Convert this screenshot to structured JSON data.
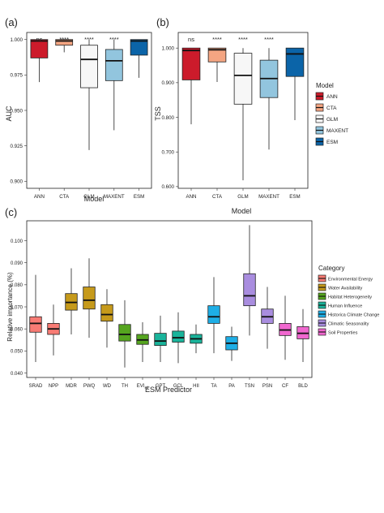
{
  "chart_data": [
    {
      "panel": "(a)",
      "type": "box",
      "ylabel": "AUC",
      "xlabel": "Model",
      "ylim": [
        0.895,
        1.005
      ],
      "yticks": [
        "0.900",
        "0.925",
        "0.950",
        "0.975",
        "1.000"
      ],
      "ytick_values": [
        0.9,
        0.925,
        0.95,
        0.975,
        1.0
      ],
      "categories": [
        "ANN",
        "CTA",
        "GLM",
        "MAXENT",
        "ESM"
      ],
      "sig": [
        "ns",
        "****",
        "****",
        "****",
        ""
      ],
      "colors": [
        "#cc1b2b",
        "#f4a582",
        "#f7f7f7",
        "#92c5de",
        "#0b64a8"
      ],
      "boxes": [
        {
          "min": 0.97,
          "q1": 0.987,
          "median": 0.999,
          "q3": 1.0,
          "max": 1.0
        },
        {
          "min": 0.991,
          "q1": 0.996,
          "median": 0.999,
          "q3": 1.0,
          "max": 1.0
        },
        {
          "min": 0.922,
          "q1": 0.966,
          "median": 0.986,
          "q3": 0.996,
          "max": 1.0
        },
        {
          "min": 0.936,
          "q1": 0.971,
          "median": 0.985,
          "q3": 0.993,
          "max": 1.0
        },
        {
          "min": 0.973,
          "q1": 0.989,
          "median": 0.999,
          "q3": 1.0,
          "max": 1.0
        }
      ]
    },
    {
      "panel": "(b)",
      "type": "box",
      "ylabel": "TSS",
      "xlabel": "Model",
      "ylim": [
        0.595,
        1.045
      ],
      "yticks": [
        "0.600",
        "0.700",
        "0.800",
        "0.900",
        "1.000"
      ],
      "ytick_values": [
        0.6,
        0.7,
        0.8,
        0.9,
        1.0
      ],
      "categories": [
        "ANN",
        "CTA",
        "GLM",
        "MAXENT",
        "ESM"
      ],
      "sig": [
        "ns",
        "****",
        "****",
        "****",
        ""
      ],
      "colors": [
        "#cc1b2b",
        "#f4a582",
        "#f7f7f7",
        "#92c5de",
        "#0b64a8"
      ],
      "boxes": [
        {
          "min": 0.78,
          "q1": 0.908,
          "median": 0.993,
          "q3": 1.0,
          "max": 1.0
        },
        {
          "min": 0.902,
          "q1": 0.96,
          "median": 0.995,
          "q3": 1.0,
          "max": 1.0
        },
        {
          "min": 0.618,
          "q1": 0.838,
          "median": 0.921,
          "q3": 0.985,
          "max": 1.0
        },
        {
          "min": 0.707,
          "q1": 0.857,
          "median": 0.912,
          "q3": 0.965,
          "max": 1.0
        },
        {
          "min": 0.792,
          "q1": 0.918,
          "median": 0.983,
          "q3": 1.0,
          "max": 1.0
        }
      ],
      "legend_title": "Model",
      "legend": [
        "ANN",
        "CTA",
        "GLM",
        "MAXENT",
        "ESM"
      ]
    },
    {
      "panel": "(c)",
      "type": "box",
      "ylabel": "Relative importance (%)",
      "xlabel": "ESM Predictor",
      "ylim": [
        0.038,
        0.109
      ],
      "yticks": [
        "0.040",
        "0.050",
        "0.060",
        "0.070",
        "0.080",
        "0.090",
        "0.100"
      ],
      "ytick_values": [
        0.04,
        0.05,
        0.06,
        0.07,
        0.08,
        0.09,
        0.1
      ],
      "categories": [
        "SRAD",
        "NPP",
        "MDR",
        "PWQ",
        "WD",
        "TH",
        "EVI_sd",
        "GPT",
        "GCL",
        "HII",
        "TA",
        "PA",
        "TSN",
        "PSN",
        "CF",
        "BLD"
      ],
      "tick_labels": [
        {
          "main": "SRAD"
        },
        {
          "main": "NPP"
        },
        {
          "main": "MDR"
        },
        {
          "main": "PWQ"
        },
        {
          "main": "WD"
        },
        {
          "main": "TH"
        },
        {
          "main": "EVI",
          "sub": "sd"
        },
        {
          "main": "GPT"
        },
        {
          "main": "GCL"
        },
        {
          "main": "HII"
        },
        {
          "main": "TA"
        },
        {
          "main": "PA"
        },
        {
          "main": "TSN"
        },
        {
          "main": "PSN"
        },
        {
          "main": "CF"
        },
        {
          "main": "BLD"
        }
      ],
      "groups": [
        0,
        0,
        1,
        1,
        1,
        2,
        2,
        3,
        3,
        3,
        4,
        4,
        5,
        5,
        6,
        6
      ],
      "boxes": [
        {
          "min": 0.045,
          "q1": 0.0585,
          "median": 0.0625,
          "q3": 0.0655,
          "max": 0.0845
        },
        {
          "min": 0.048,
          "q1": 0.0575,
          "median": 0.06,
          "q3": 0.0625,
          "max": 0.071
        },
        {
          "min": 0.0575,
          "q1": 0.0685,
          "median": 0.072,
          "q3": 0.076,
          "max": 0.0875
        },
        {
          "min": 0.056,
          "q1": 0.069,
          "median": 0.073,
          "q3": 0.079,
          "max": 0.092
        },
        {
          "min": 0.0515,
          "q1": 0.0635,
          "median": 0.0665,
          "q3": 0.071,
          "max": 0.078
        },
        {
          "min": 0.0425,
          "q1": 0.0545,
          "median": 0.0575,
          "q3": 0.062,
          "max": 0.073
        },
        {
          "min": 0.045,
          "q1": 0.053,
          "median": 0.055,
          "q3": 0.0575,
          "max": 0.063
        },
        {
          "min": 0.045,
          "q1": 0.0525,
          "median": 0.0545,
          "q3": 0.058,
          "max": 0.066
        },
        {
          "min": 0.0445,
          "q1": 0.054,
          "median": 0.056,
          "q3": 0.059,
          "max": 0.0675
        },
        {
          "min": 0.049,
          "q1": 0.0535,
          "median": 0.0555,
          "q3": 0.0575,
          "max": 0.062
        },
        {
          "min": 0.049,
          "q1": 0.0625,
          "median": 0.0655,
          "q3": 0.0705,
          "max": 0.0835
        },
        {
          "min": 0.0455,
          "q1": 0.0505,
          "median": 0.0535,
          "q3": 0.0565,
          "max": 0.061
        },
        {
          "min": 0.057,
          "q1": 0.0705,
          "median": 0.075,
          "q3": 0.085,
          "max": 0.107
        },
        {
          "min": 0.051,
          "q1": 0.0625,
          "median": 0.0655,
          "q3": 0.069,
          "max": 0.079
        },
        {
          "min": 0.046,
          "q1": 0.057,
          "median": 0.0595,
          "q3": 0.0625,
          "max": 0.075
        },
        {
          "min": 0.045,
          "q1": 0.0555,
          "median": 0.058,
          "q3": 0.061,
          "max": 0.069
        }
      ],
      "legend_title": "Category",
      "legend": [
        "Environmental Energy",
        "Water Availability",
        "Habitat Heterogeneity",
        "Human Influence",
        "Historica Climate Change",
        "Climatic Seasonality",
        "Soil Properties"
      ],
      "colors": [
        "#f87b74",
        "#c69a1b",
        "#55a51f",
        "#1ab49b",
        "#1eaee6",
        "#a98ddf",
        "#f067cf"
      ]
    }
  ]
}
